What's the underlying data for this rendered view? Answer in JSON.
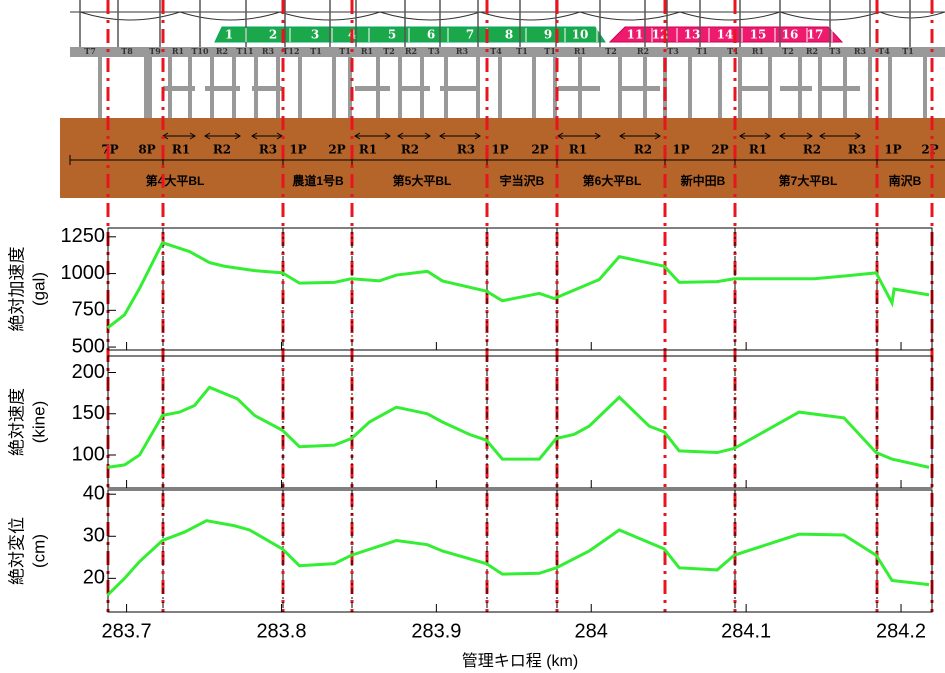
{
  "diagram": {
    "beam_labels": [
      "T7",
      "T8",
      "T9",
      "R1",
      "T10",
      "R2",
      "T11",
      "R3",
      "T12",
      "T1",
      "T1",
      "R1",
      "T2",
      "R2",
      "T3",
      "R3",
      "T4",
      "T1",
      "T1",
      "R1",
      "T2",
      "R2",
      "T3",
      "T1",
      "T1",
      "R1",
      "T2",
      "R2",
      "T3",
      "R3",
      "T4",
      "T1"
    ],
    "cars": [
      "1",
      "2",
      "3",
      "4",
      "5",
      "6",
      "7",
      "8",
      "9",
      "10",
      "11",
      "12",
      "13",
      "14",
      "15",
      "16",
      "17"
    ],
    "spans": [
      "7P",
      "8P",
      "R1",
      "R2",
      "R3",
      "1P",
      "2P",
      "R1",
      "R2",
      "R3",
      "1P",
      "2P",
      "R1",
      "R2",
      "1P",
      "2P",
      "R1",
      "R2",
      "R3",
      "1P",
      "2P"
    ],
    "bridges": [
      "第4大平BL",
      "農道1号B",
      "第5大平BL",
      "宇当沢B",
      "第6大平BL",
      "新中田B",
      "第7大平BL",
      "南沢B"
    ]
  },
  "chart_data": [
    {
      "type": "line",
      "ylabel": [
        "絶対加速度",
        "(gal)"
      ],
      "x": [
        283.6877,
        283.6987,
        283.7084,
        283.7232,
        283.7406,
        283.7535,
        283.7632,
        283.7826,
        283.8006,
        283.8116,
        283.8342,
        283.8452,
        283.8632,
        283.8742,
        283.8942,
        283.9039,
        283.9323,
        283.9426,
        283.9665,
        283.9761,
        284.0052,
        284.0181,
        284.0471,
        284.0568,
        284.0813,
        284.0923,
        284.1439,
        284.1652,
        284.1839,
        284.1942,
        284.1955,
        284.2181
      ],
      "series": [
        {
          "color": "#33ee33",
          "values": [
            630,
            720,
            900,
            1210,
            1150,
            1075,
            1050,
            1020,
            1005,
            935,
            940,
            965,
            950,
            990,
            1015,
            950,
            880,
            815,
            865,
            830,
            960,
            1115,
            1050,
            940,
            945,
            965,
            965,
            985,
            1005,
            800,
            895,
            855
          ]
        }
      ],
      "xlim": [
        283.688,
        284.22
      ],
      "ylim": [
        480,
        1310
      ],
      "yticks": [
        500,
        750,
        1000,
        1250
      ],
      "xticks": [
        283.7,
        283.8,
        283.9,
        284,
        284.1,
        284.2
      ]
    },
    {
      "type": "line",
      "ylabel": [
        "絶対速度",
        "(kine)"
      ],
      "x": [
        283.6877,
        283.6987,
        283.7084,
        283.7232,
        283.7342,
        283.7439,
        283.7535,
        283.7716,
        283.7826,
        283.8006,
        283.8116,
        283.8342,
        283.8452,
        283.8568,
        283.8742,
        283.8942,
        283.9039,
        283.9213,
        283.9323,
        283.9426,
        283.9665,
        283.9774,
        283.989,
        283.9987,
        284.0181,
        284.0374,
        284.0471,
        284.0568,
        284.0813,
        284.0923,
        284.1342,
        284.1632,
        284.1839,
        284.1942,
        284.2181
      ],
      "series": [
        {
          "color": "#33ee33",
          "values": [
            85,
            88,
            100,
            148,
            152,
            160,
            182,
            168,
            148,
            130,
            110,
            112,
            120,
            140,
            158,
            150,
            140,
            125,
            118,
            95,
            95,
            120,
            125,
            135,
            170,
            135,
            128,
            105,
            103,
            108,
            152,
            145,
            103,
            95,
            85
          ]
        }
      ],
      "xlim": [
        283.688,
        284.22
      ],
      "ylim": [
        60,
        220
      ],
      "yticks": [
        100,
        150,
        200
      ],
      "xticks": [
        283.7,
        283.8,
        283.9,
        284,
        284.1,
        284.2
      ]
    },
    {
      "type": "line",
      "ylabel": [
        "絶対変位",
        "(cm)"
      ],
      "xlabel": "管理キロ程 (km)",
      "x": [
        283.6877,
        283.6987,
        283.7084,
        283.7232,
        283.7374,
        283.7516,
        283.7697,
        283.7794,
        283.8006,
        283.8116,
        283.8342,
        283.8452,
        283.8742,
        283.8942,
        283.9039,
        283.9323,
        283.9426,
        283.9665,
        283.9774,
        283.9987,
        284.0181,
        284.0471,
        284.0568,
        284.0813,
        284.0923,
        284.1342,
        284.1632,
        284.1839,
        284.1942,
        284.2181
      ],
      "series": [
        {
          "color": "#33ee33",
          "values": [
            16,
            20,
            24,
            29,
            31,
            33.7,
            32.5,
            31.5,
            27,
            23,
            23.5,
            25.5,
            29,
            28,
            26.5,
            23.5,
            21,
            21.2,
            22.5,
            26.5,
            31.5,
            27,
            22.5,
            22,
            25.5,
            30.5,
            30.3,
            25.5,
            19.5,
            18.5
          ]
        }
      ],
      "xlim": [
        283.688,
        284.22
      ],
      "ylim": [
        12,
        41
      ],
      "yticks": [
        20,
        30,
        40
      ],
      "xticks": [
        283.7,
        283.8,
        283.9,
        284,
        284.1,
        284.2
      ]
    }
  ]
}
